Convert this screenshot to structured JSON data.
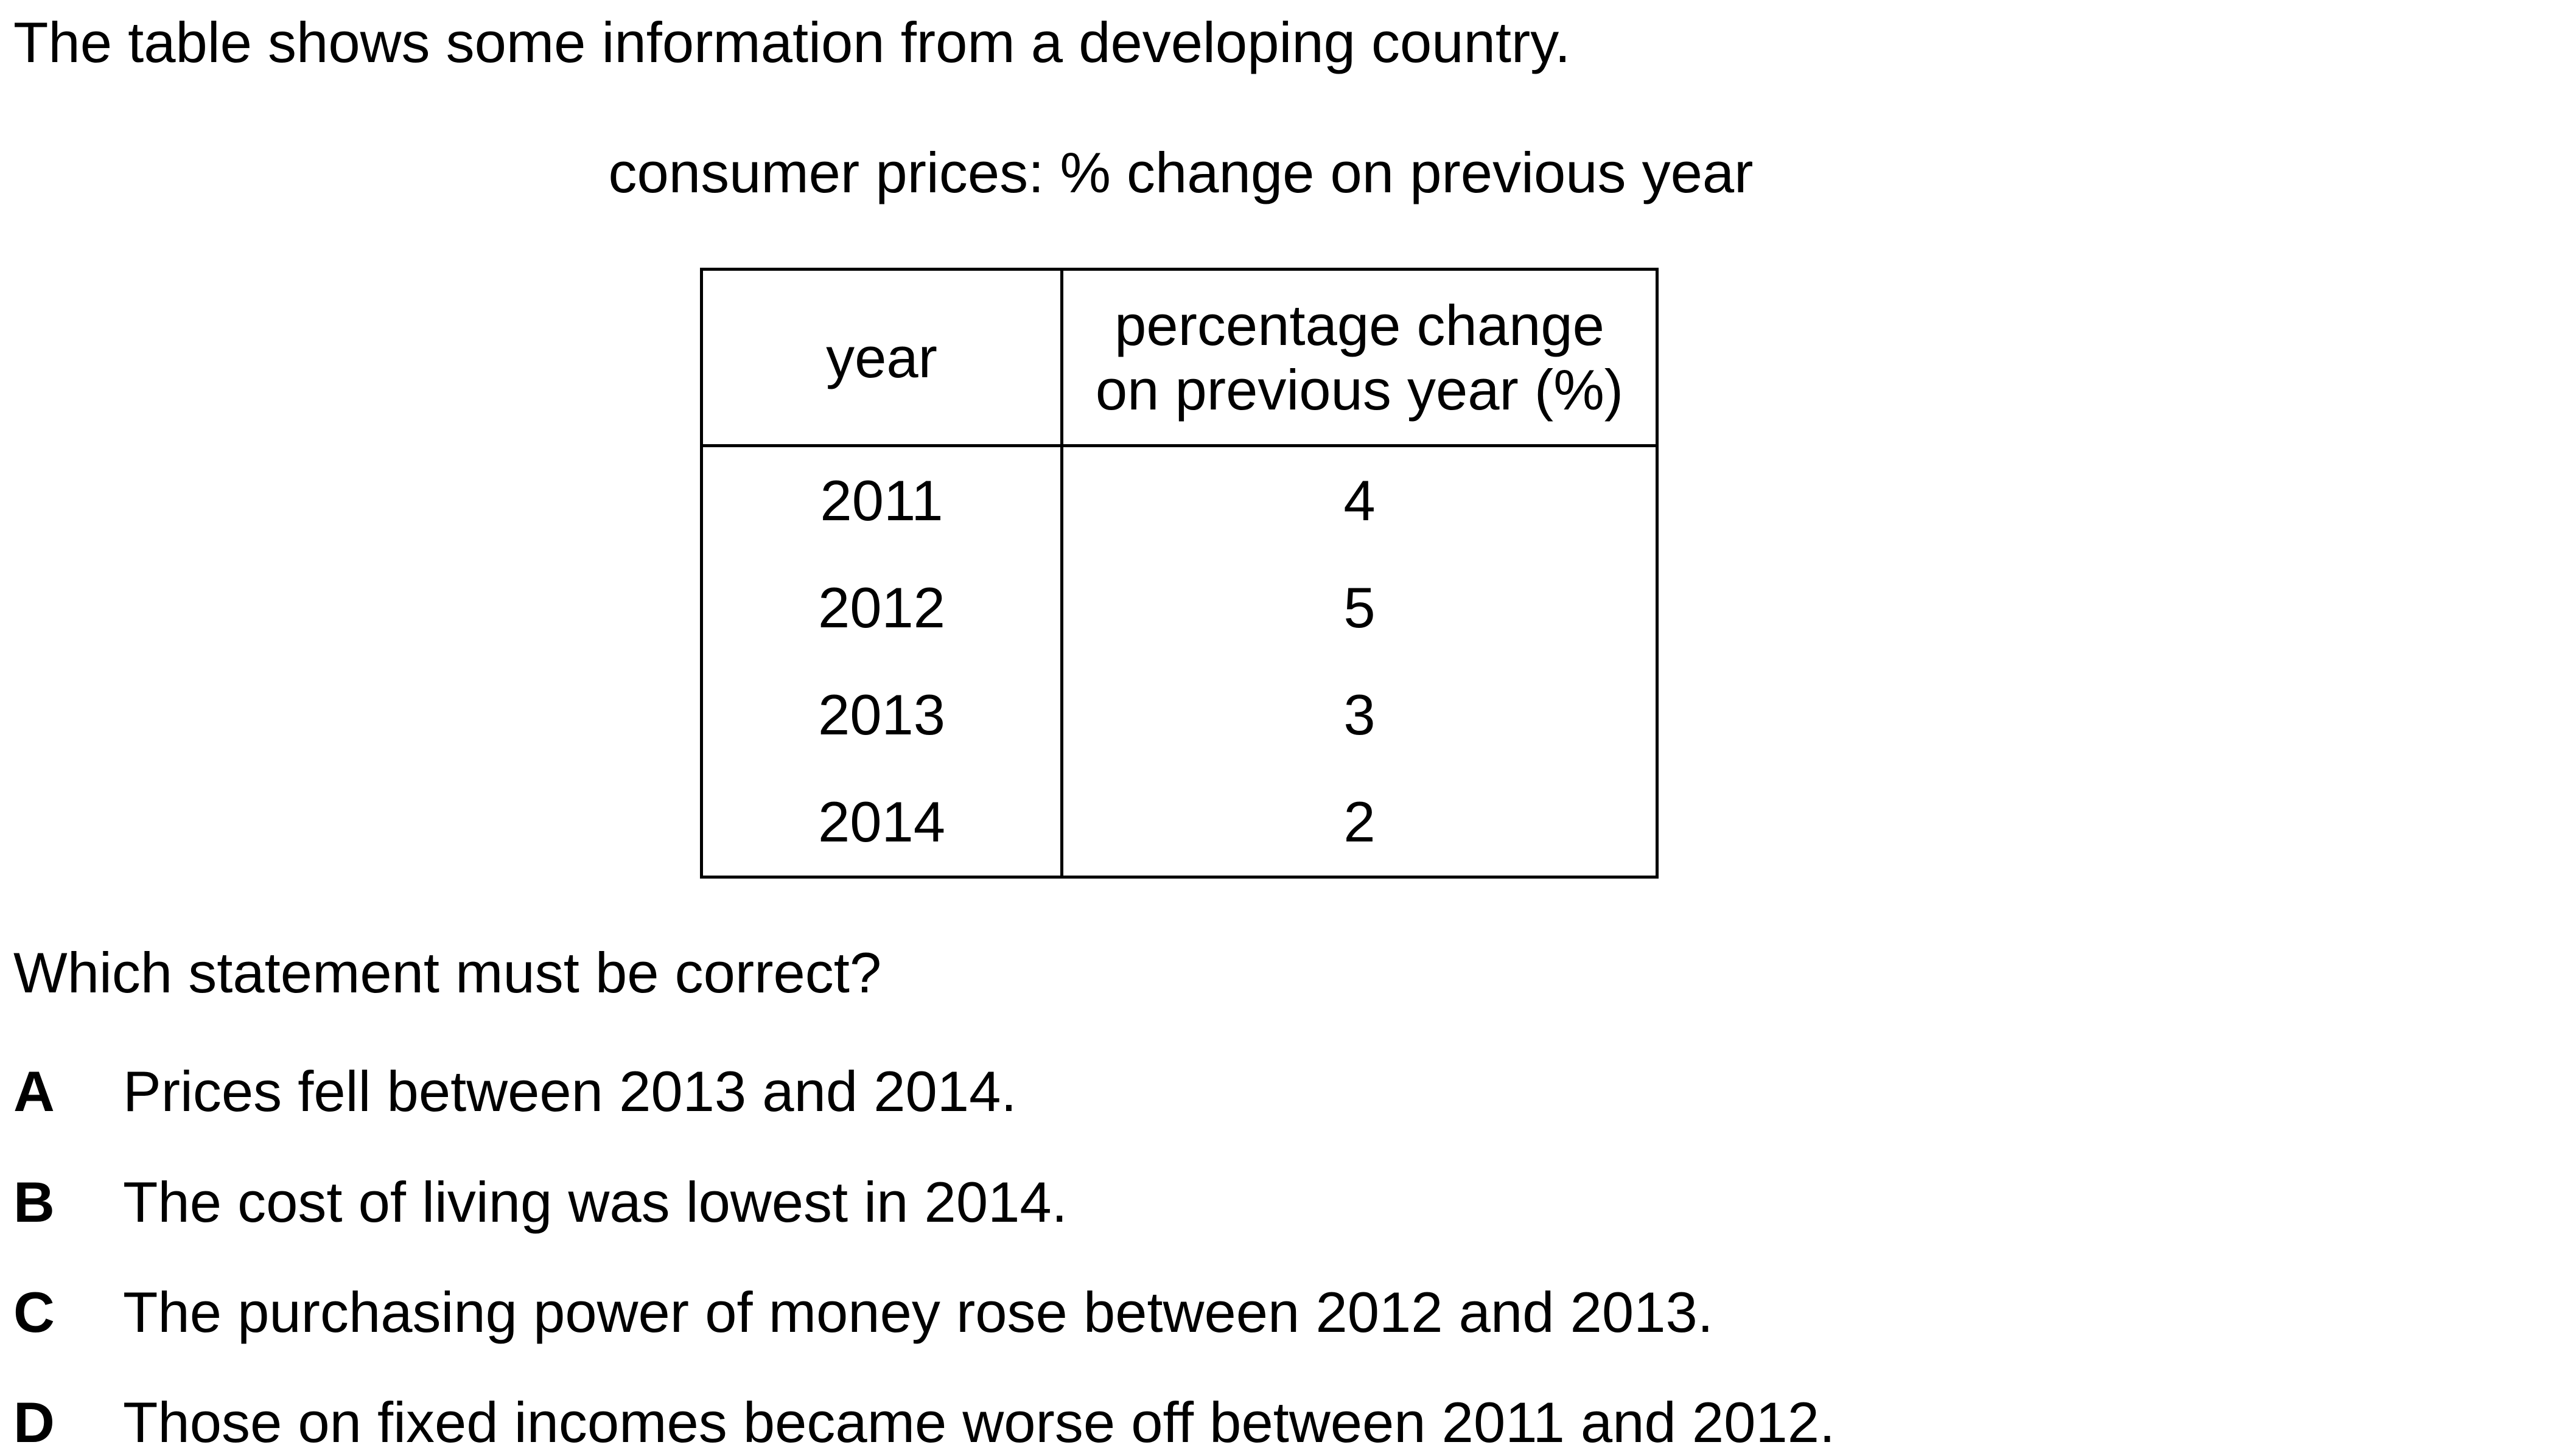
{
  "intro_text": "The table shows some information from a developing country.",
  "table_caption": "consumer prices: % change on previous year",
  "table": {
    "headers": {
      "year": "year",
      "pct_line1": "percentage change",
      "pct_line2": "on previous year (%)"
    },
    "rows": [
      {
        "year": "2011",
        "pct": "4"
      },
      {
        "year": "2012",
        "pct": "5"
      },
      {
        "year": "2013",
        "pct": "3"
      },
      {
        "year": "2014",
        "pct": "2"
      }
    ]
  },
  "question": "Which statement must be correct?",
  "options": [
    {
      "letter": "A",
      "text": "Prices fell between 2013 and 2014."
    },
    {
      "letter": "B",
      "text": "The cost of living was lowest in 2014."
    },
    {
      "letter": "C",
      "text": "The purchasing power of money rose between 2012 and 2013."
    },
    {
      "letter": "D",
      "text": "Those on fixed incomes became worse off between 2011 and 2012."
    }
  ]
}
